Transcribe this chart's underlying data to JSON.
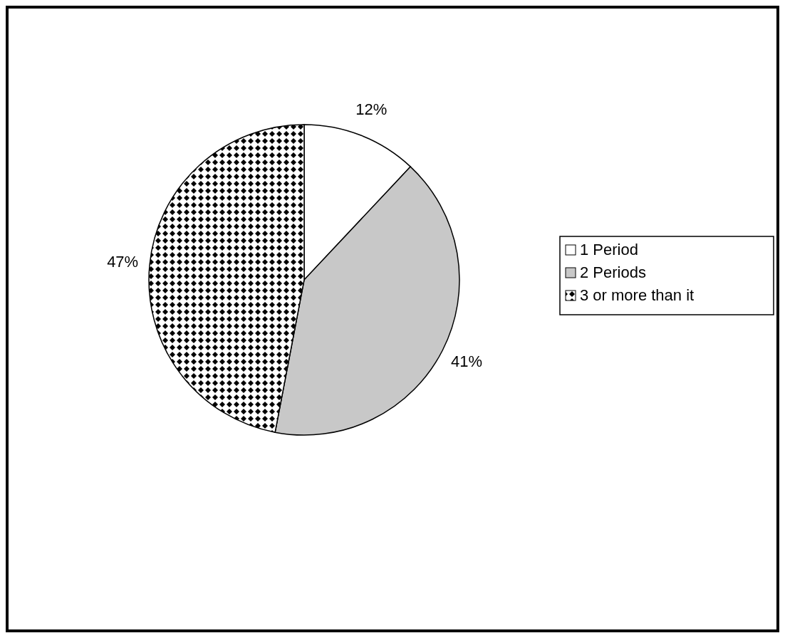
{
  "chart_data": {
    "type": "pie",
    "categories": [
      "1 Period",
      "2 Periods",
      "3 or more than it"
    ],
    "values": [
      12,
      41,
      47
    ],
    "colors": [
      "#ffffff",
      "#c8c8c8",
      "#000000"
    ],
    "legend": "right",
    "value_labels": [
      "12%",
      "41%",
      "47%"
    ]
  }
}
